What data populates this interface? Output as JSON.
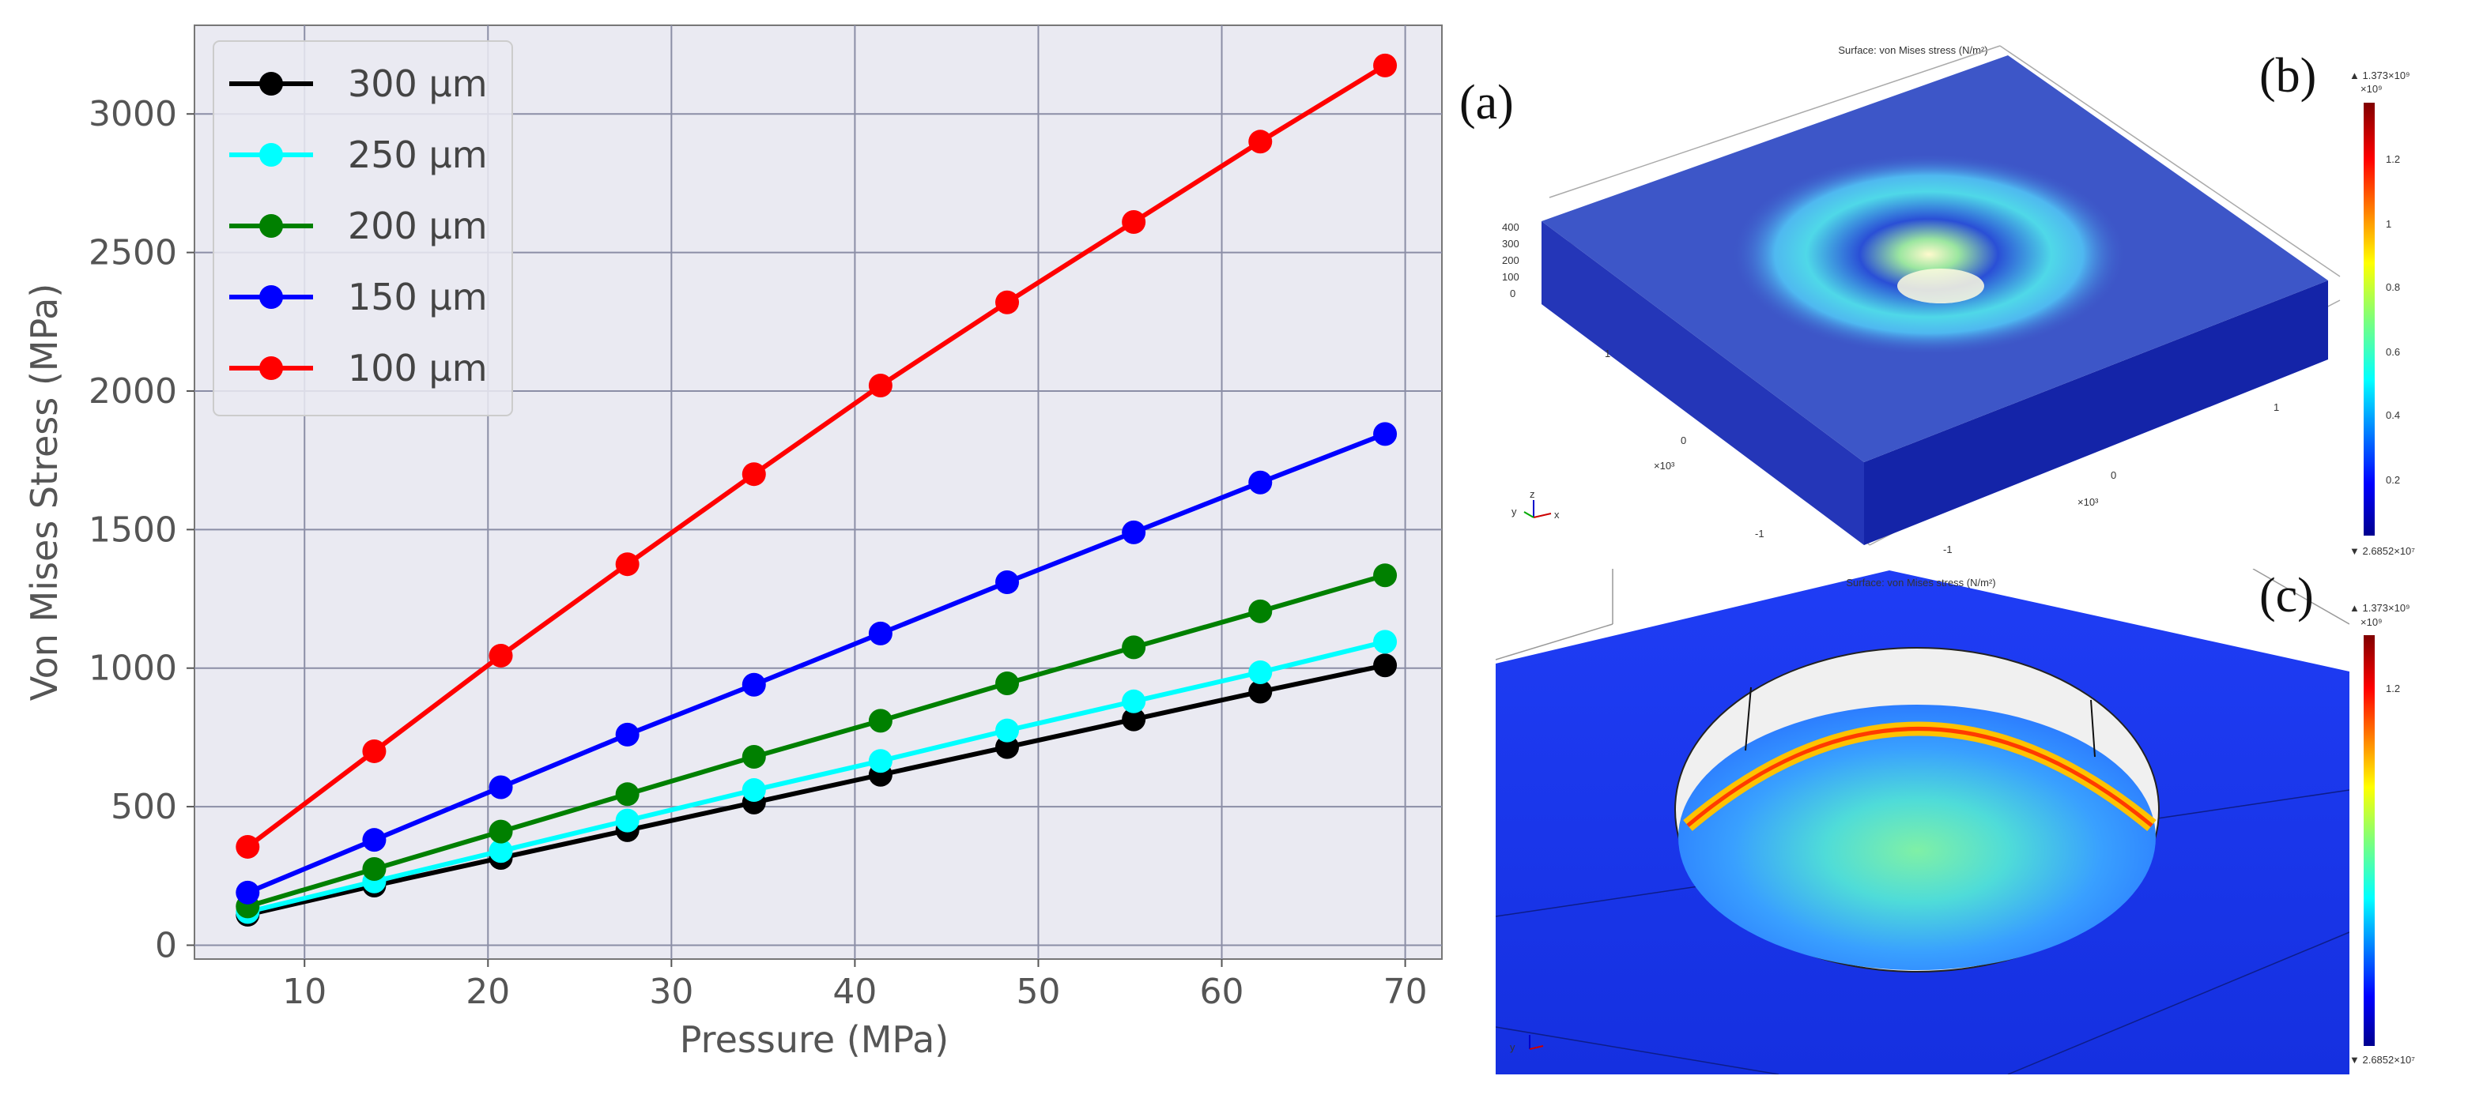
{
  "chart_data": {
    "type": "line",
    "title": "",
    "xlabel": "Pressure (MPa)",
    "ylabel": "Von Mises Stress (MPa)",
    "xlim": [
      4,
      72
    ],
    "ylim": [
      -50,
      3320
    ],
    "xticks": [
      10,
      20,
      30,
      40,
      50,
      60,
      70
    ],
    "yticks": [
      0,
      500,
      1000,
      1500,
      2000,
      2500,
      3000
    ],
    "grid": true,
    "legend_position": "top-left",
    "x": [
      6.9,
      13.8,
      20.7,
      27.6,
      34.5,
      41.4,
      48.3,
      55.2,
      62.1,
      68.9
    ],
    "series": [
      {
        "name": "300 μm",
        "color": "#000000",
        "values": [
          110,
          215,
          315,
          415,
          515,
          615,
          715,
          815,
          915,
          1010
        ]
      },
      {
        "name": "250 μm",
        "color": "#00ffff",
        "values": [
          120,
          230,
          340,
          450,
          560,
          665,
          775,
          880,
          985,
          1095
        ]
      },
      {
        "name": "200 μm",
        "color": "#008000",
        "values": [
          140,
          275,
          410,
          545,
          680,
          810,
          945,
          1075,
          1205,
          1335
        ]
      },
      {
        "name": "150 μm",
        "color": "#0000ff",
        "values": [
          190,
          380,
          570,
          760,
          940,
          1125,
          1310,
          1490,
          1670,
          1845
        ]
      },
      {
        "name": "100 μm",
        "color": "#ff0000",
        "values": [
          355,
          700,
          1045,
          1375,
          1700,
          2020,
          2320,
          2610,
          2900,
          3175
        ]
      }
    ]
  },
  "panels": {
    "a": "(a)",
    "b": "(b)",
    "c": "(c)"
  },
  "simulation": {
    "title_b": "Surface: von Mises stress (N/m²)",
    "title_c": "Surface: von Mises stress (N/m²)",
    "colorbar_max": "▲ 1.373×10⁹",
    "colorbar_exp": "×10⁹",
    "colorbar_min": "▼ 2.6852×10⁷",
    "colorbar_ticks": [
      "1.2",
      "1",
      "0.8",
      "0.6",
      "0.4",
      "0.2"
    ],
    "height_ticks": [
      "400",
      "300",
      "200",
      "100",
      "0"
    ],
    "depth_ticks": [
      "1",
      "0",
      "-1"
    ],
    "width_ticks": [
      "1",
      "0",
      "-1"
    ],
    "axis_exp": "×10³",
    "triad": {
      "x": "x",
      "y": "y",
      "z": "z"
    },
    "colors": {
      "plate_top": "#3d56c8",
      "plate_side": "#1a2aa8",
      "jet_high": "#b30000",
      "jet_low": "#00008f"
    }
  }
}
